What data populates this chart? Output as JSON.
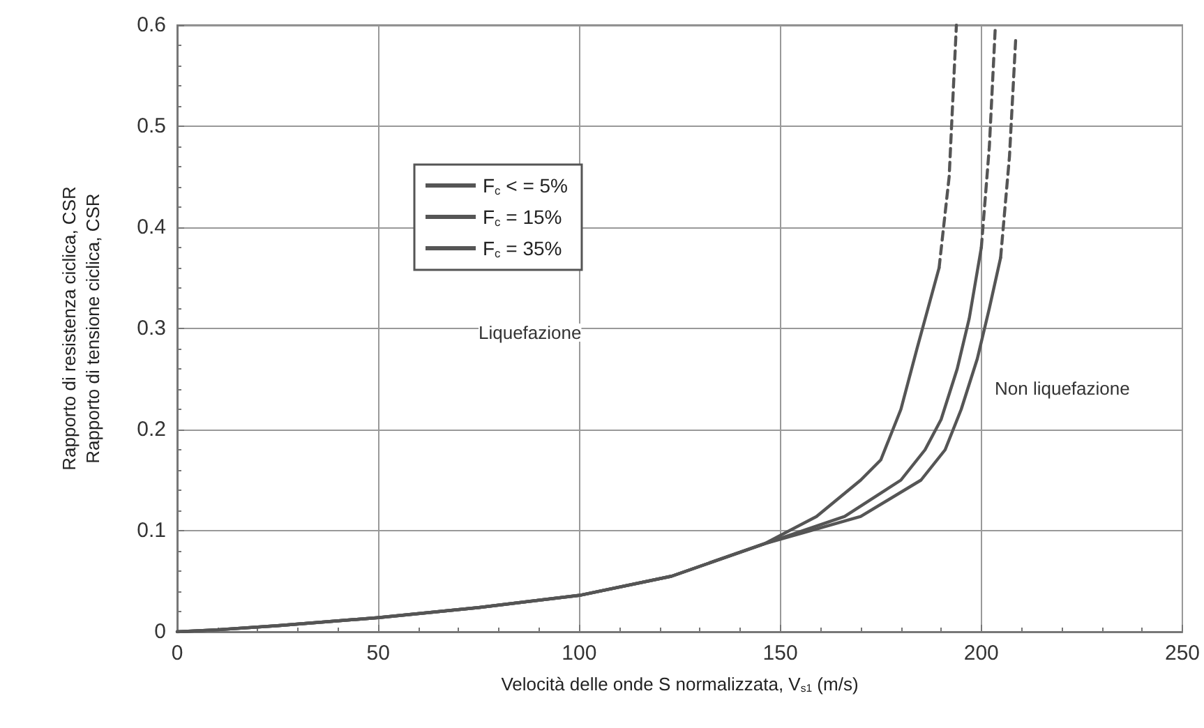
{
  "chart_data": {
    "type": "line",
    "xlabel": "Velocità delle onde S normalizzata, V$_{s1}$ (m/s)",
    "ylabel": "Rapporto di resistenza ciclica, CSR\nRapporto di tensione ciclica, CSR",
    "xlim": [
      0,
      250
    ],
    "xticks": [
      0,
      50,
      100,
      150,
      200,
      250
    ],
    "ylim": [
      0,
      0.6
    ],
    "yticks": [
      0,
      0.1,
      0.2,
      0.3,
      0.4,
      0.5,
      0.6
    ],
    "grid": true,
    "legend": "top",
    "marker": "none",
    "annotations": [
      "Liquefazione",
      "Non liquefazione"
    ],
    "series": [
      {
        "name": "F$_{c}$ < = 5%",
        "color": "#555555",
        "line_style": "solid",
        "x": [
          0,
          10,
          25,
          50,
          75,
          100,
          123,
          146,
          159,
          170,
          175,
          180,
          184,
          189.5
        ],
        "values": [
          0,
          0.002,
          0.006,
          0.014,
          0.024,
          0.036,
          0.055,
          0.087,
          0.114,
          0.15,
          0.17,
          0.22,
          0.28,
          0.36
        ]
      },
      {
        "color": "#555555",
        "line_style": "dashed",
        "x": [
          189.5,
          192,
          193.8
        ],
        "values": [
          0.36,
          0.45,
          0.6
        ]
      },
      {
        "name": "F$_{c}$ = 15%",
        "color": "#555555",
        "line_style": "solid",
        "x": [
          0,
          10,
          25,
          50,
          75,
          100,
          123,
          146,
          166,
          180,
          186,
          190,
          194,
          197,
          200
        ],
        "values": [
          0,
          0.002,
          0.006,
          0.014,
          0.024,
          0.036,
          0.055,
          0.087,
          0.114,
          0.15,
          0.18,
          0.21,
          0.26,
          0.31,
          0.38
        ]
      },
      {
        "color": "#555555",
        "line_style": "dashed",
        "x": [
          200,
          202,
          203.5
        ],
        "values": [
          0.38,
          0.48,
          0.6
        ]
      },
      {
        "name": "F$_{c}$ = 35%",
        "color": "#555555",
        "line_style": "solid",
        "x": [
          0,
          10,
          25,
          50,
          75,
          100,
          123,
          146,
          170,
          185,
          191,
          195,
          199,
          202,
          204.8
        ],
        "values": [
          0,
          0.002,
          0.006,
          0.014,
          0.024,
          0.036,
          0.055,
          0.087,
          0.114,
          0.15,
          0.18,
          0.22,
          0.27,
          0.32,
          0.37
        ]
      },
      {
        "color": "#555555",
        "line_style": "dashed",
        "x": [
          204.8,
          207,
          208.6
        ],
        "values": [
          0.37,
          0.47,
          0.59
        ]
      }
    ]
  }
}
